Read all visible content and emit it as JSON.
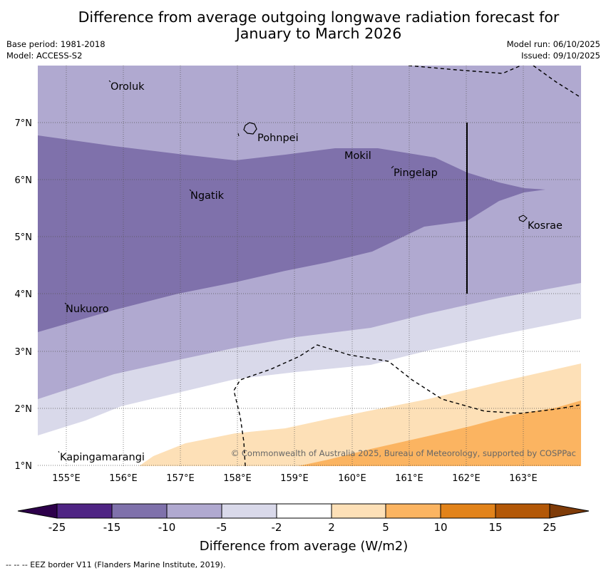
{
  "header": {
    "title_line1": "Difference from average outgoing longwave radiation forecast for",
    "title_line2": "January to March 2026",
    "base_period": "Base period: 1981-2018",
    "model": "Model: ACCESS-S2",
    "model_run": "Model run: 06/10/2025",
    "issued": "Issued: 09/10/2025"
  },
  "map": {
    "lon_ticks": [
      "155°E",
      "156°E",
      "157°E",
      "158°E",
      "159°E",
      "160°E",
      "161°E",
      "162°E",
      "163°E"
    ],
    "lat_ticks": [
      "7°N",
      "6°N",
      "5°N",
      "4°N",
      "3°N",
      "2°N",
      "1°N"
    ],
    "places": {
      "oroluk": "Oroluk",
      "pohnpei": "Pohnpei",
      "mokil": "Mokil",
      "pingelap": "Pingelap",
      "ngatik": "Ngatik",
      "kosrae": "Kosrae",
      "nukuoro": "Nukuoro",
      "kapingamarangi": "Kapingamarangi"
    },
    "copyright": "© Commonwealth of Australia 2025, Bureau of Meteorology, supported by COSPPac"
  },
  "colorbar": {
    "labels": [
      "-25",
      "-15",
      "-10",
      "-5",
      "-2",
      "2",
      "5",
      "10",
      "15",
      "25"
    ],
    "colors": [
      "#4f2484",
      "#7f71ab",
      "#b0a9d0",
      "#d9d9ea",
      "#ffffff",
      "#fde0b7",
      "#fbb461",
      "#e2831a",
      "#b35807"
    ],
    "extend_low": "#2d004b",
    "extend_high": "#7f3b08",
    "title": "Difference from average (W/m2)"
  },
  "footer": {
    "eez_note": "--  --  -- EEZ border V11 (Flanders Marine Institute, 2019)."
  }
}
